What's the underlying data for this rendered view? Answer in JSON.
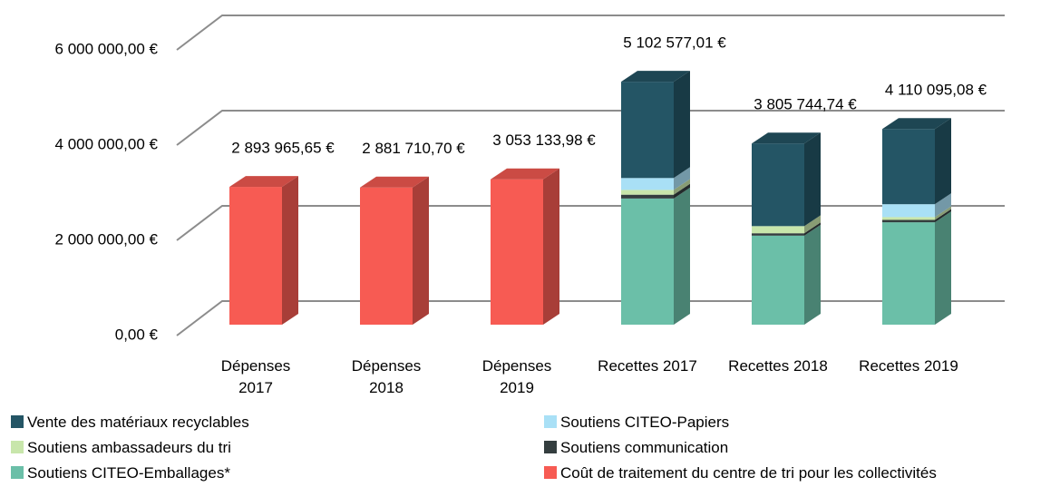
{
  "chart_data": {
    "type": "stacked-bar-3d",
    "categories": [
      "Dépenses 2017",
      "Dépenses 2018",
      "Dépenses 2019",
      "Recettes 2017",
      "Recettes 2018",
      "Recettes 2019"
    ],
    "series": [
      {
        "name": "Vente des matériaux recyclables",
        "color": "#245565",
        "values": [
          null,
          null,
          null,
          2022577.01,
          1735744.74,
          1580095.08
        ]
      },
      {
        "name": "Soutiens CITEO-Papiers",
        "color": "#a9e0f6",
        "values": [
          null,
          null,
          null,
          250000,
          null,
          270000
        ]
      },
      {
        "name": "Soutiens ambassadeurs du tri",
        "color": "#c8e6ab",
        "values": [
          null,
          null,
          null,
          100000,
          150000,
          60000
        ]
      },
      {
        "name": "Soutiens communication",
        "color": "#343e3f",
        "values": [
          null,
          null,
          null,
          80000,
          50000,
          50000
        ]
      },
      {
        "name": "Soutiens CITEO-Emballages*",
        "color": "#6bbfa8",
        "values": [
          null,
          null,
          null,
          2650000,
          1870000,
          2150000
        ]
      },
      {
        "name": "Coût de traitement du centre de tri pour les collectivités",
        "color": "#f75b53",
        "values": [
          2893965.65,
          2881710.7,
          3053133.98,
          null,
          null,
          null
        ]
      }
    ],
    "totals": {
      "values": [
        2893965.65,
        2881710.7,
        3053133.98,
        5102577.01,
        3805744.74,
        4110095.08
      ],
      "value_labels": [
        "2 893 965,65 €",
        "2 881 710,70 €",
        "3 053 133,98 €",
        "5 102 577,01 €",
        "3 805 744,74 €",
        "4 110 095,08 €"
      ]
    },
    "ylim": [
      0,
      6000000
    ],
    "yticks": [
      {
        "value": 0,
        "label": "0,00 €"
      },
      {
        "value": 2000000,
        "label": "2 000 000,00 €"
      },
      {
        "value": 4000000,
        "label": "4 000 000,00 €"
      },
      {
        "value": 6000000,
        "label": "6 000 000,00 €"
      }
    ],
    "grid": true,
    "legend": "bottom"
  }
}
